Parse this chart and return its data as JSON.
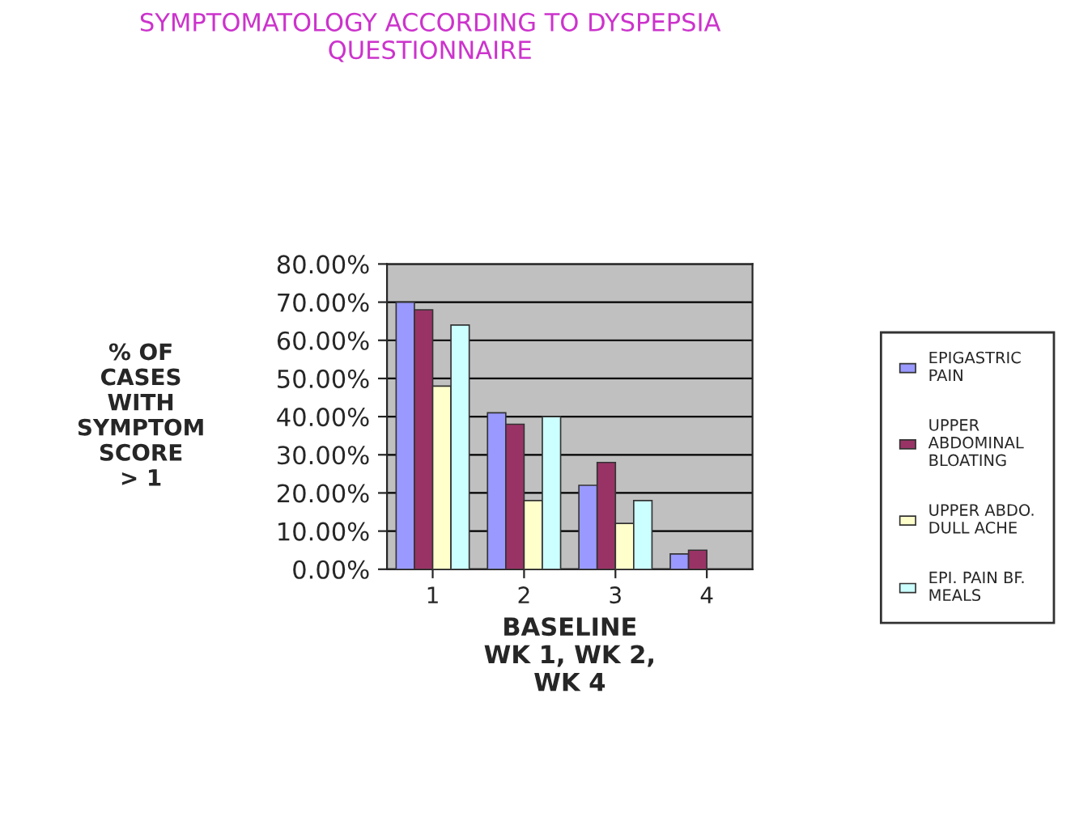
{
  "chart_data": {
    "type": "bar",
    "title": "SYMPTOMATOLOGY ACCORDING TO DYSPEPSIA\nQUESTIONNAIRE",
    "xlabel": "BASELINE\nWK 1, WK 2,\nWK 4",
    "ylabel": "% OF\nCASES\nWITH\nSYMPTOM\nSCORE\n> 1",
    "categories": [
      "1",
      "2",
      "3",
      "4"
    ],
    "series": [
      {
        "name": "EPIGASTRIC\nPAIN",
        "color": "#9999ff",
        "values": [
          70,
          41,
          22,
          4
        ]
      },
      {
        "name": "UPPER\nABDOMINAL\nBLOATING",
        "color": "#993366",
        "values": [
          68,
          38,
          28,
          5
        ]
      },
      {
        "name": "UPPER ABDO.\nDULL ACHE",
        "color": "#ffffcc",
        "values": [
          48,
          18,
          12,
          0
        ]
      },
      {
        "name": "EPI. PAIN BF.\nMEALS",
        "color": "#ccffff",
        "values": [
          64,
          40,
          18,
          0
        ]
      }
    ],
    "ylim": [
      0,
      80
    ],
    "yticks": [
      {
        "value": 0,
        "label": "0.00%"
      },
      {
        "value": 10,
        "label": "10.00%"
      },
      {
        "value": 20,
        "label": "20.00%"
      },
      {
        "value": 30,
        "label": "30.00%"
      },
      {
        "value": 40,
        "label": "40.00%"
      },
      {
        "value": 50,
        "label": "50.00%"
      },
      {
        "value": 60,
        "label": "60.00%"
      },
      {
        "value": 70,
        "label": "70.00%"
      },
      {
        "value": 80,
        "label": "80.00%"
      }
    ],
    "grid": "y",
    "legend": "right"
  }
}
